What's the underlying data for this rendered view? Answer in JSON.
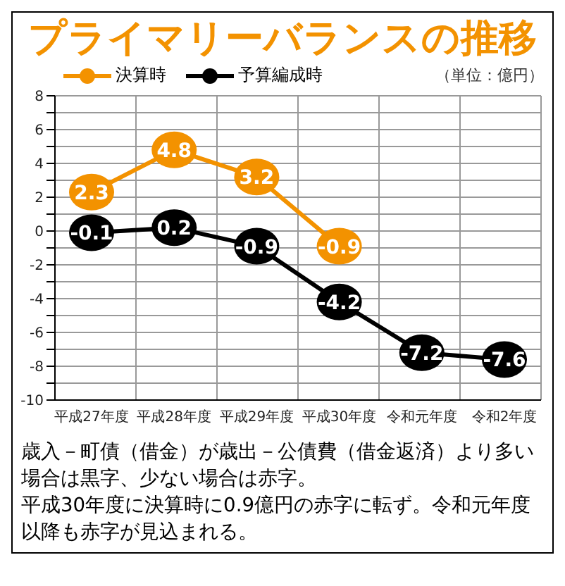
{
  "chart_data": {
    "type": "line",
    "title": "プライマリーバランスの推移",
    "categories": [
      "平成27年度",
      "平成28年度",
      "平成29年度",
      "平成30年度",
      "令和元年度",
      "令和2年度"
    ],
    "series": [
      {
        "name": "決算時",
        "color": "#f39200",
        "values": [
          2.3,
          4.8,
          3.2,
          -0.9,
          null,
          null
        ]
      },
      {
        "name": "予算編成時",
        "color": "#000000",
        "values": [
          -0.1,
          0.2,
          -0.9,
          -4.2,
          -7.2,
          -7.6
        ]
      }
    ],
    "ylim": [
      -10,
      8
    ],
    "yticks": [
      -10,
      {
        "value": -9,
        "label": null
      },
      -8,
      {
        "value": -7,
        "label": null
      },
      -6,
      {
        "value": -5,
        "label": null
      },
      -4,
      {
        "value": -3,
        "label": null
      },
      -2,
      {
        "value": -1,
        "label": null
      },
      0,
      {
        "value": 1,
        "label": null
      },
      2,
      {
        "value": 3,
        "label": null
      },
      4,
      {
        "value": 5,
        "label": null
      },
      6,
      {
        "value": 7,
        "label": null
      },
      8
    ],
    "grid": true,
    "legend": "top left",
    "marker": "circle",
    "line_style": "solid",
    "data_labels": true,
    "annotations": [
      "（単位：億円）",
      "歳入－町債（借金）が歳出－公債費（借金返済）より多い場合は黒字、少ない場合は赤字。",
      "平成30年度に決算時に0.9億円の赤字に転ず。令和元年度以降も赤字が見込まれる。"
    ]
  }
}
